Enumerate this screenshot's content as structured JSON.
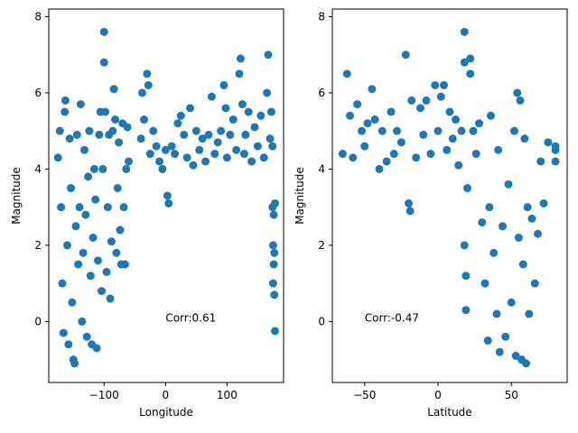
{
  "colors": {
    "points": "#1f77b4",
    "axes": "#000000",
    "background": "#ffffff"
  },
  "chart_data": [
    {
      "type": "scatter",
      "xlabel": "Longitude",
      "ylabel": "Magnitude",
      "xlim": [
        -190,
        192
      ],
      "ylim": [
        -1.6,
        8.2
      ],
      "xticks": [
        -100,
        0,
        100
      ],
      "xtick_labels": [
        "−100",
        "0",
        "100"
      ],
      "yticks": [
        0,
        2,
        4,
        6,
        8
      ],
      "ytick_labels": [
        "0",
        "2",
        "4",
        "6",
        "8"
      ],
      "annotation": {
        "text": "Corr:0.61",
        "x": 0,
        "y": 0
      },
      "points": [
        [
          -175,
          4.3
        ],
        [
          -172,
          5.0
        ],
        [
          -170,
          3.0
        ],
        [
          -168,
          1.0
        ],
        [
          -166,
          -0.3
        ],
        [
          -164,
          5.5
        ],
        [
          -163,
          5.8
        ],
        [
          -160,
          2.0
        ],
        [
          -158,
          -0.6
        ],
        [
          -156,
          4.8
        ],
        [
          -154,
          3.5
        ],
        [
          -152,
          0.5
        ],
        [
          -150,
          -1.0
        ],
        [
          -148,
          -1.1
        ],
        [
          -146,
          2.5
        ],
        [
          -144,
          4.9
        ],
        [
          -142,
          1.5
        ],
        [
          -140,
          3.0
        ],
        [
          -138,
          5.7
        ],
        [
          -136,
          0.0
        ],
        [
          -134,
          1.8
        ],
        [
          -132,
          4.5
        ],
        [
          -130,
          2.8
        ],
        [
          -128,
          -0.4
        ],
        [
          -126,
          3.8
        ],
        [
          -124,
          5.0
        ],
        [
          -122,
          1.2
        ],
        [
          -120,
          -0.6
        ],
        [
          -118,
          2.2
        ],
        [
          -116,
          4.0
        ],
        [
          -114,
          3.2
        ],
        [
          -112,
          -0.7
        ],
        [
          -110,
          1.6
        ],
        [
          -108,
          4.9
        ],
        [
          -106,
          5.5
        ],
        [
          -104,
          0.8
        ],
        [
          -102,
          4.0
        ],
        [
          -100,
          7.6
        ],
        [
          -100,
          6.8
        ],
        [
          -98,
          5.5
        ],
        [
          -96,
          1.3
        ],
        [
          -94,
          3.0
        ],
        [
          -92,
          4.9
        ],
        [
          -90,
          0.6
        ],
        [
          -88,
          2.1
        ],
        [
          -86,
          5.0
        ],
        [
          -84,
          6.1
        ],
        [
          -82,
          5.3
        ],
        [
          -80,
          1.8
        ],
        [
          -78,
          3.5
        ],
        [
          -76,
          4.7
        ],
        [
          -74,
          2.4
        ],
        [
          -72,
          1.5
        ],
        [
          -70,
          5.2
        ],
        [
          -68,
          3.0
        ],
        [
          -66,
          1.5
        ],
        [
          -64,
          4.0
        ],
        [
          -62,
          5.1
        ],
        [
          -60,
          4.2
        ],
        [
          -40,
          4.8
        ],
        [
          -38,
          6.0
        ],
        [
          -35,
          5.3
        ],
        [
          -30,
          6.5
        ],
        [
          -28,
          6.2
        ],
        [
          -25,
          4.4
        ],
        [
          -20,
          5.0
        ],
        [
          -15,
          4.6
        ],
        [
          -10,
          4.2
        ],
        [
          -5,
          4.0
        ],
        [
          0,
          4.5
        ],
        [
          3,
          3.3
        ],
        [
          5,
          3.1
        ],
        [
          10,
          4.6
        ],
        [
          15,
          4.4
        ],
        [
          20,
          5.2
        ],
        [
          25,
          5.4
        ],
        [
          30,
          4.9
        ],
        [
          35,
          4.3
        ],
        [
          40,
          5.6
        ],
        [
          45,
          4.1
        ],
        [
          50,
          5.0
        ],
        [
          55,
          4.5
        ],
        [
          60,
          4.8
        ],
        [
          65,
          4.2
        ],
        [
          70,
          4.9
        ],
        [
          75,
          5.9
        ],
        [
          80,
          4.4
        ],
        [
          85,
          4.7
        ],
        [
          90,
          5.0
        ],
        [
          95,
          6.2
        ],
        [
          98,
          5.6
        ],
        [
          100,
          4.3
        ],
        [
          105,
          4.9
        ],
        [
          110,
          5.3
        ],
        [
          115,
          4.5
        ],
        [
          120,
          6.5
        ],
        [
          122,
          6.9
        ],
        [
          125,
          5.7
        ],
        [
          128,
          4.4
        ],
        [
          130,
          4.9
        ],
        [
          135,
          5.5
        ],
        [
          140,
          4.2
        ],
        [
          145,
          5.1
        ],
        [
          150,
          4.6
        ],
        [
          155,
          5.4
        ],
        [
          160,
          4.3
        ],
        [
          165,
          6.0
        ],
        [
          167,
          7.0
        ],
        [
          170,
          4.8
        ],
        [
          172,
          5.5
        ],
        [
          174,
          3.0
        ],
        [
          175,
          2.0
        ],
        [
          176,
          1.5
        ],
        [
          177,
          0.7
        ],
        [
          178,
          -0.25
        ],
        [
          176,
          2.8
        ],
        [
          175,
          1.0
        ],
        [
          177,
          1.8
        ],
        [
          174,
          4.6
        ],
        [
          178,
          3.1
        ]
      ]
    },
    {
      "type": "scatter",
      "xlabel": "Latitude",
      "ylabel": "Magnitude",
      "xlim": [
        -72,
        88
      ],
      "ylim": [
        -1.6,
        8.2
      ],
      "xticks": [
        -50,
        0,
        50
      ],
      "xtick_labels": [
        "−50",
        "0",
        "50"
      ],
      "yticks": [
        0,
        2,
        4,
        6,
        8
      ],
      "ytick_labels": [
        "0",
        "2",
        "4",
        "6",
        "8"
      ],
      "annotation": {
        "text": "Corr:-0.47",
        "x": -50,
        "y": 0
      },
      "points": [
        [
          -65,
          4.4
        ],
        [
          -62,
          6.5
        ],
        [
          -60,
          5.4
        ],
        [
          -58,
          4.3
        ],
        [
          -55,
          5.7
        ],
        [
          -52,
          5.0
        ],
        [
          -50,
          4.6
        ],
        [
          -48,
          5.2
        ],
        [
          -45,
          6.1
        ],
        [
          -43,
          5.3
        ],
        [
          -40,
          4.0
        ],
        [
          -38,
          5.0
        ],
        [
          -35,
          4.2
        ],
        [
          -32,
          5.5
        ],
        [
          -30,
          4.4
        ],
        [
          -28,
          5.0
        ],
        [
          -25,
          4.7
        ],
        [
          -22,
          7.0
        ],
        [
          -20,
          3.1
        ],
        [
          -19,
          2.9
        ],
        [
          -18,
          5.8
        ],
        [
          -15,
          4.3
        ],
        [
          -12,
          5.6
        ],
        [
          -10,
          4.9
        ],
        [
          -8,
          5.8
        ],
        [
          -5,
          4.4
        ],
        [
          -2,
          6.2
        ],
        [
          0,
          5.0
        ],
        [
          2,
          5.9
        ],
        [
          4,
          6.2
        ],
        [
          6,
          4.5
        ],
        [
          8,
          5.5
        ],
        [
          10,
          4.8
        ],
        [
          12,
          5.3
        ],
        [
          14,
          4.1
        ],
        [
          16,
          5.0
        ],
        [
          18,
          7.6
        ],
        [
          18,
          6.8
        ],
        [
          18,
          2.0
        ],
        [
          19,
          0.3
        ],
        [
          19,
          1.2
        ],
        [
          20,
          3.5
        ],
        [
          22,
          6.9
        ],
        [
          22,
          6.5
        ],
        [
          24,
          5.0
        ],
        [
          26,
          4.4
        ],
        [
          28,
          5.2
        ],
        [
          30,
          2.6
        ],
        [
          32,
          1.0
        ],
        [
          34,
          -0.5
        ],
        [
          35,
          3.0
        ],
        [
          36,
          5.4
        ],
        [
          38,
          1.8
        ],
        [
          40,
          0.2
        ],
        [
          41,
          4.5
        ],
        [
          42,
          -0.8
        ],
        [
          44,
          2.5
        ],
        [
          46,
          -0.4
        ],
        [
          48,
          3.6
        ],
        [
          50,
          0.5
        ],
        [
          52,
          5.0
        ],
        [
          53,
          -0.9
        ],
        [
          54,
          6.0
        ],
        [
          55,
          2.2
        ],
        [
          56,
          5.8
        ],
        [
          57,
          -1.0
        ],
        [
          58,
          1.5
        ],
        [
          59,
          4.8
        ],
        [
          60,
          -1.1
        ],
        [
          61,
          3.0
        ],
        [
          62,
          0.2
        ],
        [
          64,
          2.7
        ],
        [
          66,
          1.0
        ],
        [
          68,
          2.3
        ],
        [
          70,
          4.2
        ],
        [
          72,
          3.1
        ],
        [
          75,
          4.7
        ],
        [
          80,
          4.5
        ],
        [
          80,
          4.6
        ],
        [
          80,
          4.2
        ]
      ]
    }
  ]
}
